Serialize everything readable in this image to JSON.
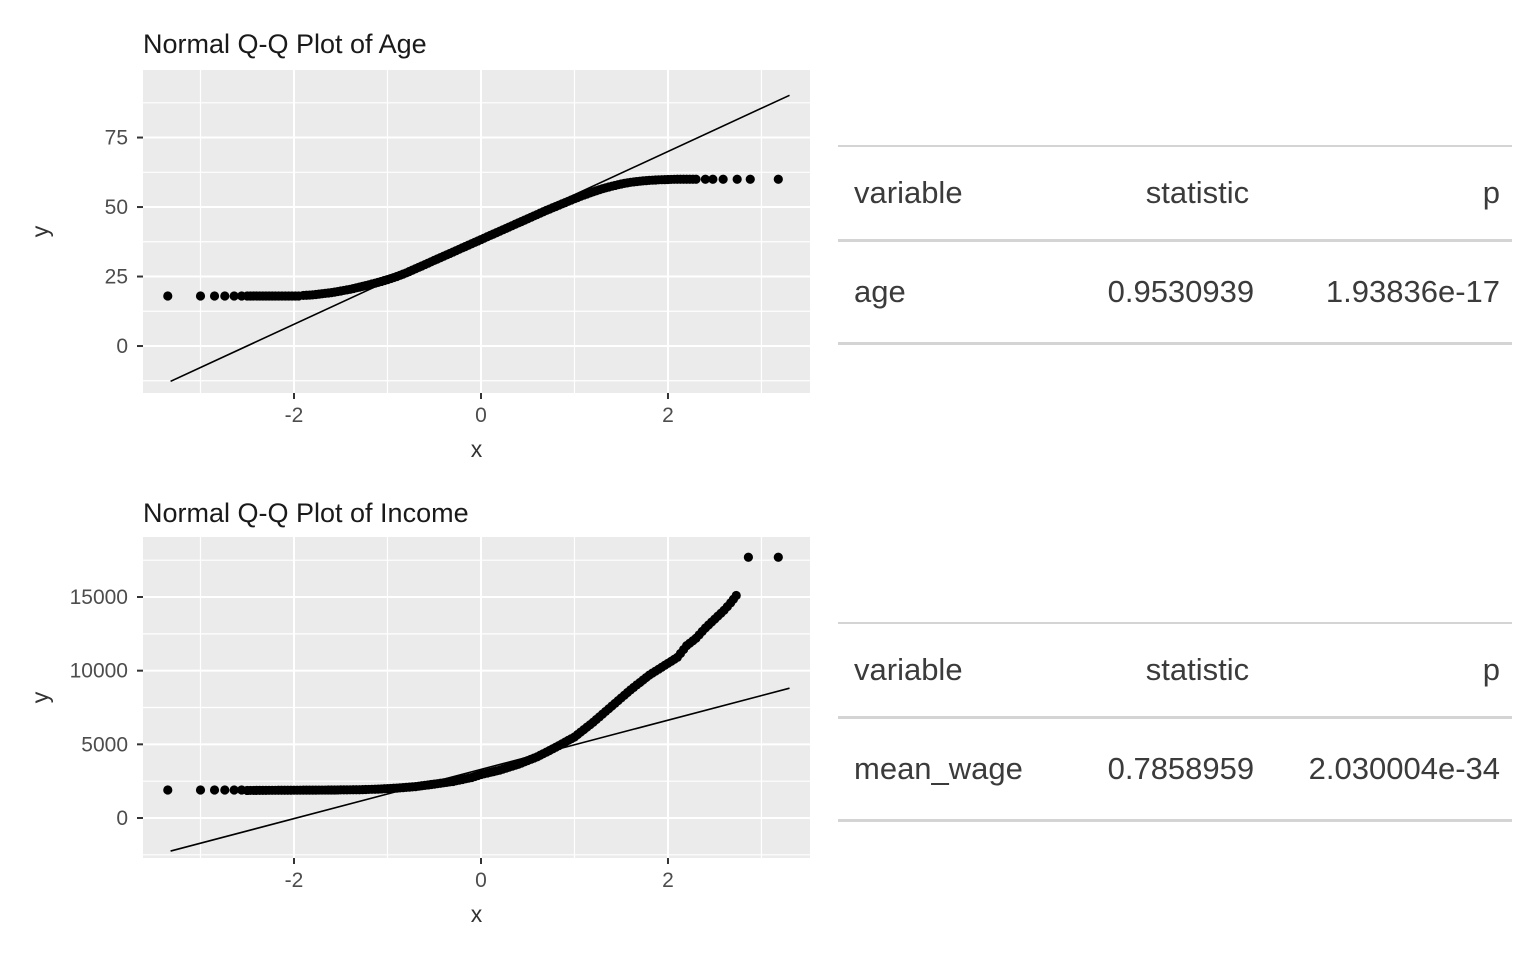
{
  "colors": {
    "page_bg": "#ffffff",
    "panel_bg": "#ebebeb",
    "grid": "#ffffff",
    "point": "#000000",
    "ref_line": "#000000",
    "tick_mark": "#333333",
    "axis_text": "#4d4d4d",
    "axis_title": "#333333",
    "plot_title": "#1a1a1a",
    "table_text": "#3b3b3b",
    "table_line": "#d4d4d4"
  },
  "chart_data": [
    {
      "type": "scatter",
      "title": "Normal Q-Q Plot of Age",
      "xlabel": "x",
      "ylabel": "y",
      "xlim": [
        -3.615,
        3.519
      ],
      "ylim": [
        -16.9,
        99.3
      ],
      "x_major_ticks": [
        -2,
        0,
        2
      ],
      "x_minor_ticks": [
        -3,
        -1,
        1,
        3
      ],
      "y_major_ticks": [
        0,
        25,
        50,
        75
      ],
      "y_minor_ticks": [
        -12.5,
        12.5,
        37.5,
        62.5,
        87.5
      ],
      "grid": true,
      "legend": "none",
      "curve_points": [
        [
          -2.5,
          18
        ],
        [
          -2.2,
          18
        ],
        [
          -1.95,
          18
        ],
        [
          -1.9,
          18.2
        ],
        [
          -1.8,
          18.4
        ],
        [
          -1.7,
          18.8
        ],
        [
          -1.6,
          19.2
        ],
        [
          -1.5,
          19.8
        ],
        [
          -1.4,
          20.4
        ],
        [
          -1.3,
          21.2
        ],
        [
          -1.2,
          22.0
        ],
        [
          -1.1,
          22.9
        ],
        [
          -1.0,
          23.9
        ],
        [
          -0.9,
          25.0
        ],
        [
          -0.8,
          26.3
        ],
        [
          -0.7,
          27.8
        ],
        [
          -0.6,
          29.3
        ],
        [
          -0.5,
          30.8
        ],
        [
          -0.4,
          32.3
        ],
        [
          -0.3,
          33.8
        ],
        [
          -0.2,
          35.3
        ],
        [
          -0.1,
          36.8
        ],
        [
          0.0,
          38.3
        ],
        [
          0.1,
          39.8
        ],
        [
          0.2,
          41.3
        ],
        [
          0.3,
          42.8
        ],
        [
          0.4,
          44.3
        ],
        [
          0.5,
          45.8
        ],
        [
          0.6,
          47.3
        ],
        [
          0.7,
          48.8
        ],
        [
          0.8,
          50.2
        ],
        [
          0.9,
          51.6
        ],
        [
          1.0,
          53.0
        ],
        [
          1.1,
          54.3
        ],
        [
          1.2,
          55.5
        ],
        [
          1.3,
          56.6
        ],
        [
          1.4,
          57.5
        ],
        [
          1.5,
          58.3
        ],
        [
          1.6,
          58.9
        ],
        [
          1.7,
          59.3
        ],
        [
          1.8,
          59.6
        ],
        [
          1.9,
          59.8
        ],
        [
          2.0,
          59.9
        ],
        [
          2.1,
          60
        ],
        [
          2.3,
          60
        ]
      ],
      "tail_points": [
        [
          -3.35,
          18
        ],
        [
          -3.0,
          18
        ],
        [
          -2.85,
          18
        ],
        [
          -2.74,
          18
        ],
        [
          -2.64,
          18
        ],
        [
          -2.56,
          18
        ],
        [
          2.4,
          60
        ],
        [
          2.48,
          60
        ],
        [
          2.59,
          60
        ],
        [
          2.74,
          60
        ],
        [
          2.88,
          60
        ],
        [
          3.18,
          60
        ]
      ],
      "ref_line": [
        [
          -3.32,
          -12.7
        ],
        [
          3.3,
          90.2
        ]
      ]
    },
    {
      "type": "scatter",
      "title": "Normal Q-Q Plot of Income",
      "xlabel": "x",
      "ylabel": "y",
      "xlim": [
        -3.615,
        3.519
      ],
      "ylim": [
        -2715,
        19073
      ],
      "x_major_ticks": [
        -2,
        0,
        2
      ],
      "x_minor_ticks": [
        -3,
        -1,
        1,
        3
      ],
      "y_major_ticks": [
        0,
        5000,
        10000,
        15000
      ],
      "y_minor_ticks": [
        -2500,
        2500,
        7500,
        12500,
        17500
      ],
      "grid": true,
      "legend": "none",
      "curve_points": [
        [
          -2.5,
          1870
        ],
        [
          -2.2,
          1880
        ],
        [
          -1.9,
          1890
        ],
        [
          -1.6,
          1900
        ],
        [
          -1.3,
          1920
        ],
        [
          -1.1,
          1960
        ],
        [
          -0.9,
          2030
        ],
        [
          -0.7,
          2130
        ],
        [
          -0.5,
          2300
        ],
        [
          -0.3,
          2480
        ],
        [
          -0.1,
          2750
        ],
        [
          0.0,
          2950
        ],
        [
          0.2,
          3250
        ],
        [
          0.4,
          3650
        ],
        [
          0.6,
          4150
        ],
        [
          0.8,
          4800
        ],
        [
          1.0,
          5500
        ],
        [
          1.2,
          6500
        ],
        [
          1.4,
          7600
        ],
        [
          1.6,
          8700
        ],
        [
          1.8,
          9700
        ],
        [
          2.0,
          10500
        ],
        [
          2.1,
          10900
        ],
        [
          2.2,
          11700
        ],
        [
          2.3,
          12200
        ],
        [
          2.4,
          12900
        ],
        [
          2.5,
          13500
        ],
        [
          2.6,
          14100
        ],
        [
          2.67,
          14600
        ],
        [
          2.73,
          15100
        ]
      ],
      "tail_points": [
        [
          -3.35,
          1900
        ],
        [
          -3.0,
          1900
        ],
        [
          -2.85,
          1900
        ],
        [
          -2.74,
          1900
        ],
        [
          -2.64,
          1900
        ],
        [
          -2.56,
          1900
        ],
        [
          2.86,
          17700
        ],
        [
          3.18,
          17700
        ]
      ],
      "ref_line": [
        [
          -3.32,
          -2245
        ],
        [
          3.3,
          8810
        ]
      ]
    }
  ],
  "tables": [
    {
      "headers": [
        "variable",
        "statistic",
        "p"
      ],
      "rows": [
        [
          "age",
          "0.9530939",
          "1.93836e-17"
        ]
      ]
    },
    {
      "headers": [
        "variable",
        "statistic",
        "p"
      ],
      "rows": [
        [
          "mean_wage",
          "0.7858959",
          "2.030004e-34"
        ]
      ]
    }
  ]
}
